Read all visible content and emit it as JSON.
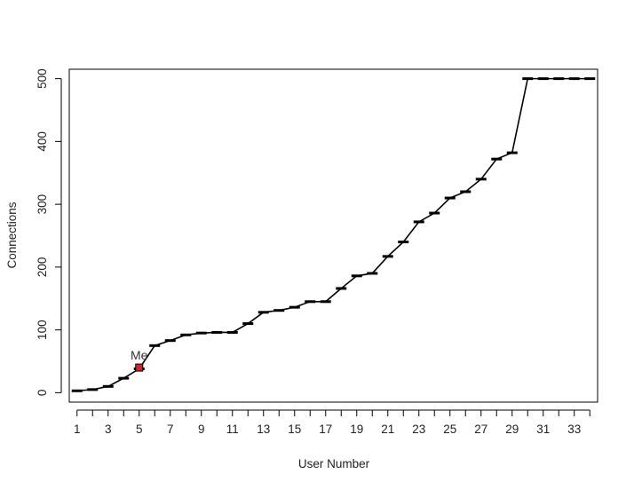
{
  "chart_data": {
    "type": "line",
    "title": "",
    "xlabel": "User Number",
    "ylabel": "Connections",
    "xlim": [
      0.5,
      34.5
    ],
    "ylim": [
      -15,
      515
    ],
    "x_ticks": [
      1,
      3,
      5,
      7,
      9,
      11,
      13,
      15,
      17,
      19,
      21,
      23,
      25,
      27,
      29,
      31,
      33
    ],
    "y_ticks": [
      0,
      100,
      200,
      300,
      400,
      500
    ],
    "grid": false,
    "series": [
      {
        "x": [
          1,
          2,
          3,
          4,
          5,
          6,
          7,
          8,
          9,
          10,
          11,
          12,
          13,
          14,
          15,
          16,
          17,
          18,
          19,
          20,
          21,
          22,
          23,
          24,
          25,
          26,
          27,
          28,
          29,
          30,
          31,
          32,
          33,
          34
        ],
        "values": [
          3,
          5,
          10,
          23,
          38,
          75,
          83,
          92,
          95,
          96,
          96,
          110,
          128,
          131,
          136,
          145,
          145,
          166,
          186,
          190,
          217,
          240,
          272,
          286,
          310,
          320,
          340,
          372,
          382,
          500,
          500,
          500,
          500,
          500
        ]
      }
    ],
    "highlight": {
      "label": "Me",
      "x": 5,
      "y": 40,
      "color": "#dd2222"
    }
  }
}
